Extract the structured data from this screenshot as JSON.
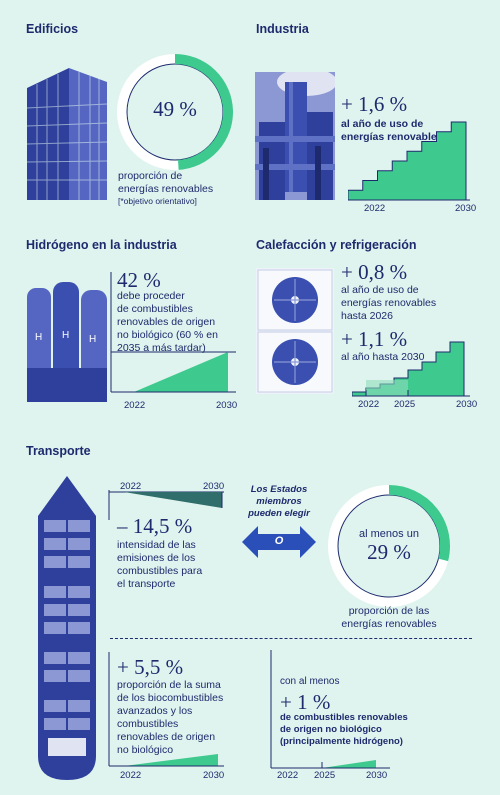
{
  "buildings": {
    "title": "Edificios",
    "percent": "49 %",
    "percent_value": 49,
    "caption": "proporción de\nenergías renovables",
    "note": "[*objetivo orientativo]"
  },
  "industry": {
    "title": "Industria",
    "value": "+ 1,6 %",
    "caption": "al año de uso de\nenergías renovables",
    "x_start": "2022",
    "x_end": "2030"
  },
  "hydrogen": {
    "title": "Hidrógeno en la industria",
    "value": "42 %",
    "caption": "debe proceder\nde combustibles\nrenovables de origen\nno biológico (60 % en\n2035 a más tardar)",
    "x_start": "2022",
    "x_end": "2030"
  },
  "heating": {
    "title": "Calefacción y refrigeración",
    "value1": "+ 0,8 %",
    "caption1": "al año de uso de\nenergías renovables\nhasta 2026",
    "value2": "+ 1,1 %",
    "caption2": "al año hasta 2030",
    "x_start": "2022",
    "x_mid": "2025",
    "x_end": "2030"
  },
  "transport": {
    "title": "Transporte",
    "choice_label": "Los Estados\nmiembros\npueden elegir",
    "or_label": "O",
    "intensity": {
      "x_start": "2022",
      "x_end": "2030",
      "value": "– 14,5 %",
      "caption": "intensidad de las\nemisiones de los\ncombustibles para\nel transporte"
    },
    "share": {
      "prefix": "al menos un",
      "percent": "29 %",
      "percent_value": 29,
      "caption": "proporción de las\nenergías renovables"
    },
    "biofuels": {
      "value": "+ 5,5 %",
      "caption": "proporción de la suma\nde los biocombustibles\navanzados y los\ncombustibles\nrenovables de origen\nno biológico",
      "x_start": "2022",
      "x_end": "2030"
    },
    "rfnbo": {
      "prefix": "con al menos",
      "value": "+ 1 %",
      "caption": "de combustibles renovables\nde origen no biológico\n(principalmente hidrógeno)",
      "x_start": "2022",
      "x_mid": "2025",
      "x_end": "2030"
    }
  },
  "colors": {
    "navy": "#1d2a6e",
    "green": "#3ec98e",
    "background": "#dff4ee",
    "photo_blue": "#3a4fb0"
  }
}
